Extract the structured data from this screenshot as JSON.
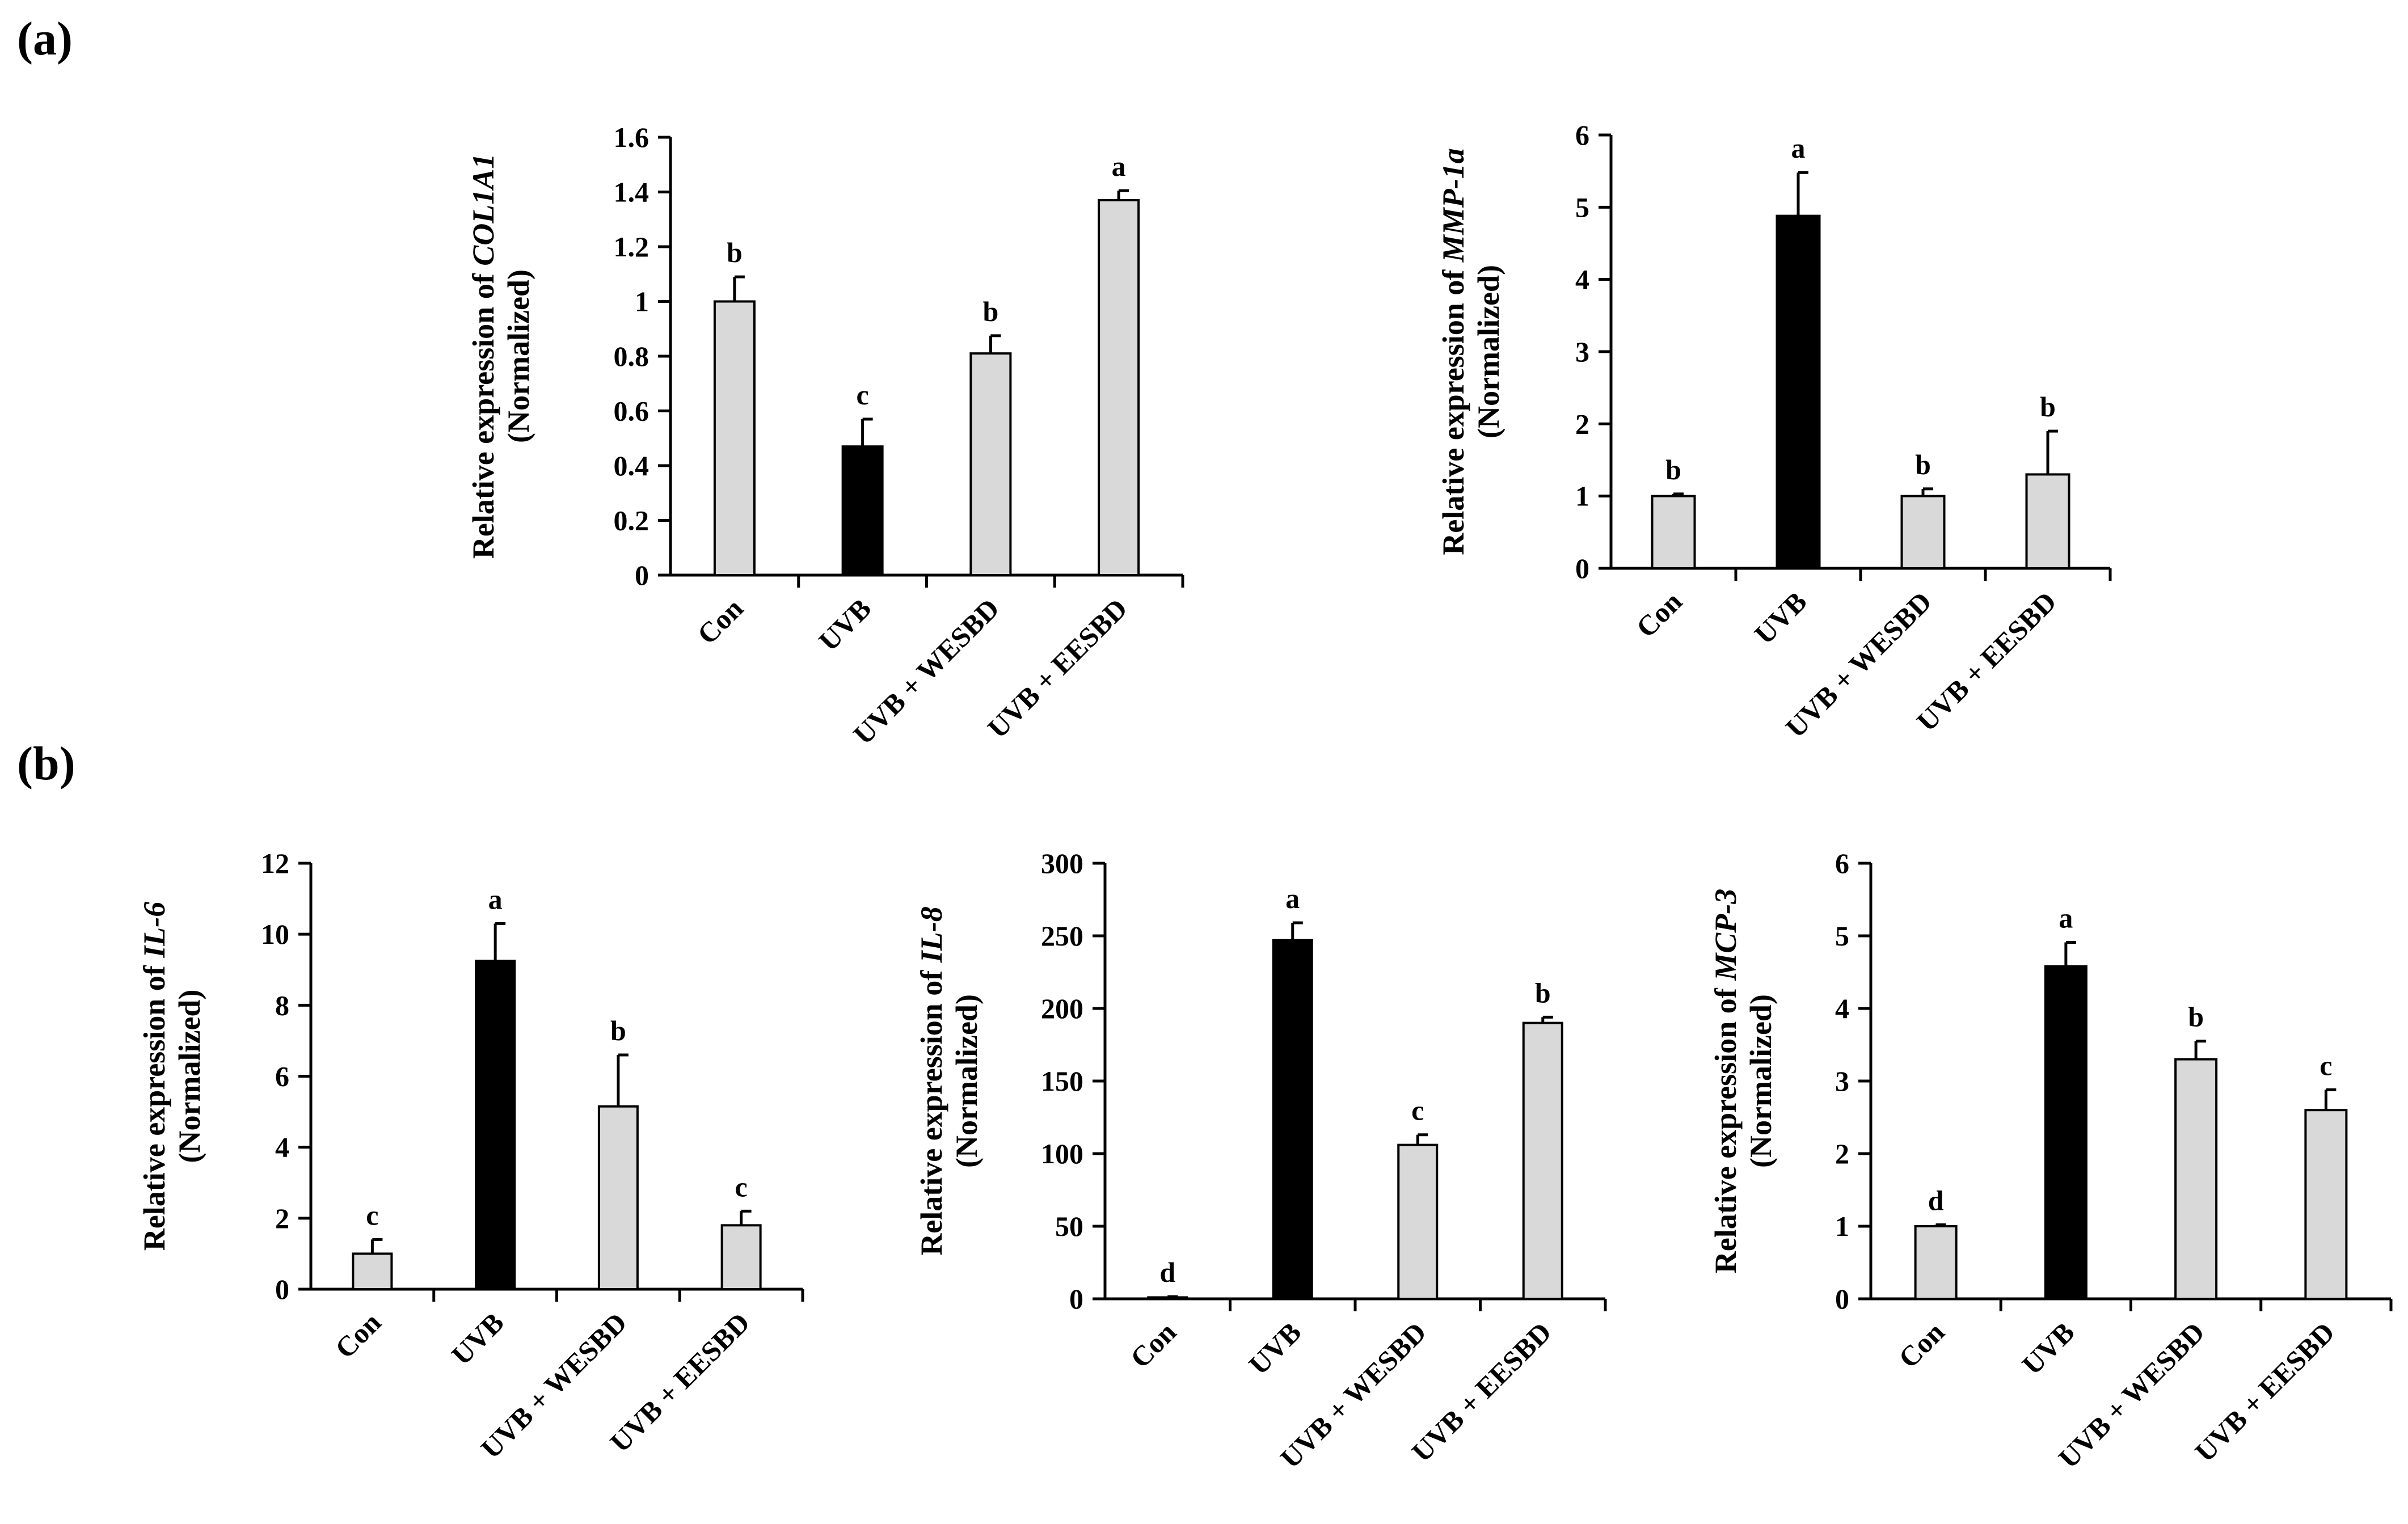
{
  "panels": [
    {
      "label": "(a)"
    },
    {
      "label": "(b)"
    }
  ],
  "colors": {
    "control": "#d9d9d9",
    "uvb": "#000000",
    "axis": "#000000"
  },
  "chart_data": [
    {
      "panel": "(a)",
      "type": "bar",
      "title": "",
      "categories": [
        "Con",
        "UVB",
        "UVB + WESBD",
        "UVB + EESBD"
      ],
      "values": [
        1.0,
        0.47,
        0.81,
        1.37
      ],
      "errors": [
        0.09,
        0.1,
        0.065,
        0.035
      ],
      "letters": [
        "b",
        "c",
        "b",
        "a"
      ],
      "ylabel_prefix": "Relative expression of ",
      "ylabel_gene": "COL1A1",
      "ylabel_line2": "(Normalized)",
      "ylim": [
        0,
        1.6
      ],
      "yticks": [
        0,
        0.2,
        0.4,
        0.6,
        0.8,
        1,
        1.2,
        1.4,
        1.6
      ],
      "ytick_labels": [
        "0",
        "0.2",
        "0.4",
        "0.6",
        "0.8",
        "1",
        "1.2",
        "1.4",
        "1.6"
      ]
    },
    {
      "panel": "(a)",
      "type": "bar",
      "title": "",
      "categories": [
        "Con",
        "UVB",
        "UVB + WESBD",
        "UVB + EESBD"
      ],
      "values": [
        1.0,
        4.88,
        1.0,
        1.3
      ],
      "errors": [
        0.03,
        0.6,
        0.1,
        0.6
      ],
      "letters": [
        "b",
        "a",
        "b",
        "b"
      ],
      "ylabel_prefix": "Relative expression of ",
      "ylabel_gene": "MMP-1a",
      "ylabel_line2": "(Normalized)",
      "ylim": [
        0,
        6
      ],
      "yticks": [
        0,
        1,
        2,
        3,
        4,
        5,
        6
      ],
      "ytick_labels": [
        "0",
        "1",
        "2",
        "3",
        "4",
        "5",
        "6"
      ]
    },
    {
      "panel": "(b)",
      "type": "bar",
      "title": "",
      "categories": [
        "Con",
        "UVB",
        "UVB + WESBD",
        "UVB + EESBD"
      ],
      "values": [
        1.0,
        9.25,
        5.15,
        1.8
      ],
      "errors": [
        0.4,
        1.05,
        1.45,
        0.4
      ],
      "letters": [
        "c",
        "a",
        "b",
        "c"
      ],
      "ylabel_prefix": "Relative expression of ",
      "ylabel_gene": "IL-6",
      "ylabel_line2": "(Normalized)",
      "ylim": [
        0,
        12
      ],
      "yticks": [
        0,
        2,
        4,
        6,
        8,
        10,
        12
      ],
      "ytick_labels": [
        "0",
        "2",
        "4",
        "6",
        "8",
        "10",
        "12"
      ]
    },
    {
      "panel": "(b)",
      "type": "bar",
      "title": "",
      "categories": [
        "Con",
        "UVB",
        "UVB + WESBD",
        "UVB + EESBD"
      ],
      "values": [
        1,
        247,
        106,
        190
      ],
      "errors": [
        0.5,
        12,
        7,
        4
      ],
      "letters": [
        "d",
        "a",
        "c",
        "b"
      ],
      "ylabel_prefix": "Relative expression of ",
      "ylabel_gene": "IL-8",
      "ylabel_line2": "(Normalized)",
      "ylim": [
        0,
        300
      ],
      "yticks": [
        0,
        50,
        100,
        150,
        200,
        250,
        300
      ],
      "ytick_labels": [
        "0",
        "50",
        "100",
        "150",
        "200",
        "250",
        "300"
      ]
    },
    {
      "panel": "(b)",
      "type": "bar",
      "title": "",
      "categories": [
        "Con",
        "UVB",
        "UVB + WESBD",
        "UVB + EESBD"
      ],
      "values": [
        1.0,
        4.58,
        3.3,
        2.6
      ],
      "errors": [
        0.02,
        0.33,
        0.25,
        0.28
      ],
      "letters": [
        "d",
        "a",
        "b",
        "c"
      ],
      "ylabel_prefix": "Relative expression of ",
      "ylabel_gene": "MCP-3",
      "ylabel_line2": "(Normalized)",
      "ylim": [
        0,
        6
      ],
      "yticks": [
        0,
        1,
        2,
        3,
        4,
        5,
        6
      ],
      "ytick_labels": [
        "0",
        "1",
        "2",
        "3",
        "4",
        "5",
        "6"
      ]
    }
  ]
}
